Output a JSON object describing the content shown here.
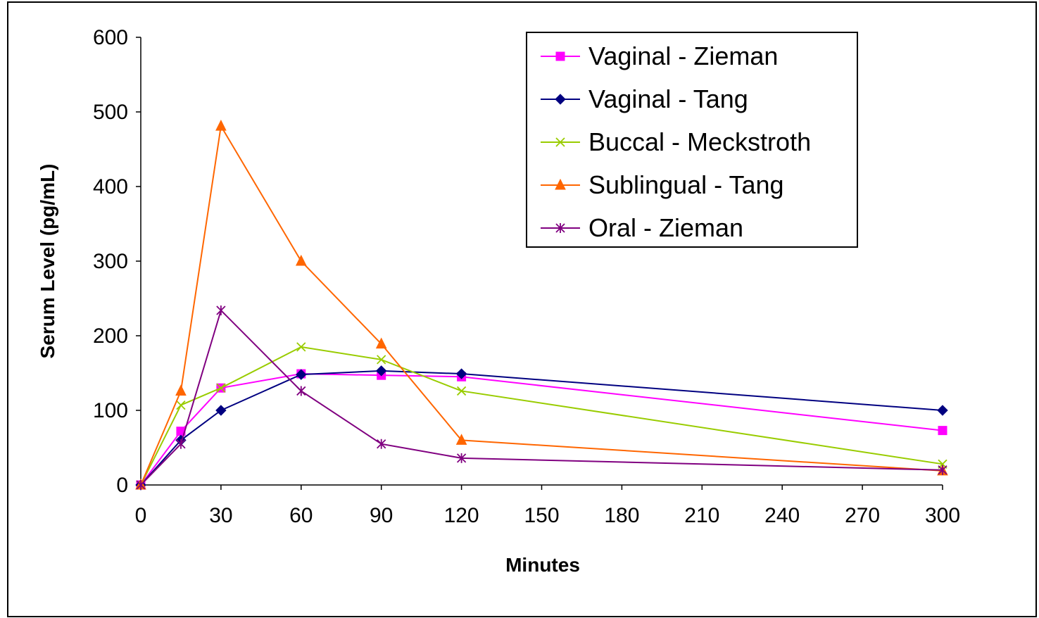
{
  "chart_data": {
    "type": "line",
    "title": "",
    "xlabel": "Minutes",
    "ylabel": "Serum Level (pg/mL)",
    "xlim": [
      0,
      300
    ],
    "ylim": [
      0,
      600
    ],
    "x_ticks": [
      0,
      30,
      60,
      90,
      120,
      150,
      180,
      210,
      240,
      270,
      300
    ],
    "y_ticks": [
      0,
      100,
      200,
      300,
      400,
      500,
      600
    ],
    "grid": false,
    "legend_position": "top-right",
    "series": [
      {
        "name": "Vaginal - Zieman",
        "color": "#ff00ff",
        "marker": "square",
        "x": [
          0,
          15,
          30,
          60,
          90,
          120,
          300
        ],
        "values": [
          0,
          72,
          130,
          149,
          147,
          145,
          73
        ]
      },
      {
        "name": "Vaginal - Tang",
        "color": "#000080",
        "marker": "diamond",
        "x": [
          0,
          15,
          30,
          60,
          90,
          120,
          300
        ],
        "values": [
          0,
          60,
          100,
          148,
          153,
          149,
          100
        ]
      },
      {
        "name": "Buccal - Meckstroth",
        "color": "#99cc00",
        "marker": "x",
        "x": [
          0,
          15,
          30,
          60,
          90,
          120,
          300
        ],
        "values": [
          0,
          107,
          130,
          185,
          168,
          126,
          28
        ]
      },
      {
        "name": "Sublingual - Tang",
        "color": "#ff6600",
        "marker": "triangle",
        "x": [
          0,
          15,
          30,
          60,
          90,
          120,
          300
        ],
        "values": [
          0,
          126,
          481,
          300,
          189,
          60,
          19
        ]
      },
      {
        "name": "Oral - Zieman",
        "color": "#800080",
        "marker": "asterisk",
        "x": [
          0,
          15,
          30,
          60,
          90,
          120,
          300
        ],
        "values": [
          0,
          55,
          234,
          126,
          55,
          36,
          20
        ]
      }
    ]
  }
}
